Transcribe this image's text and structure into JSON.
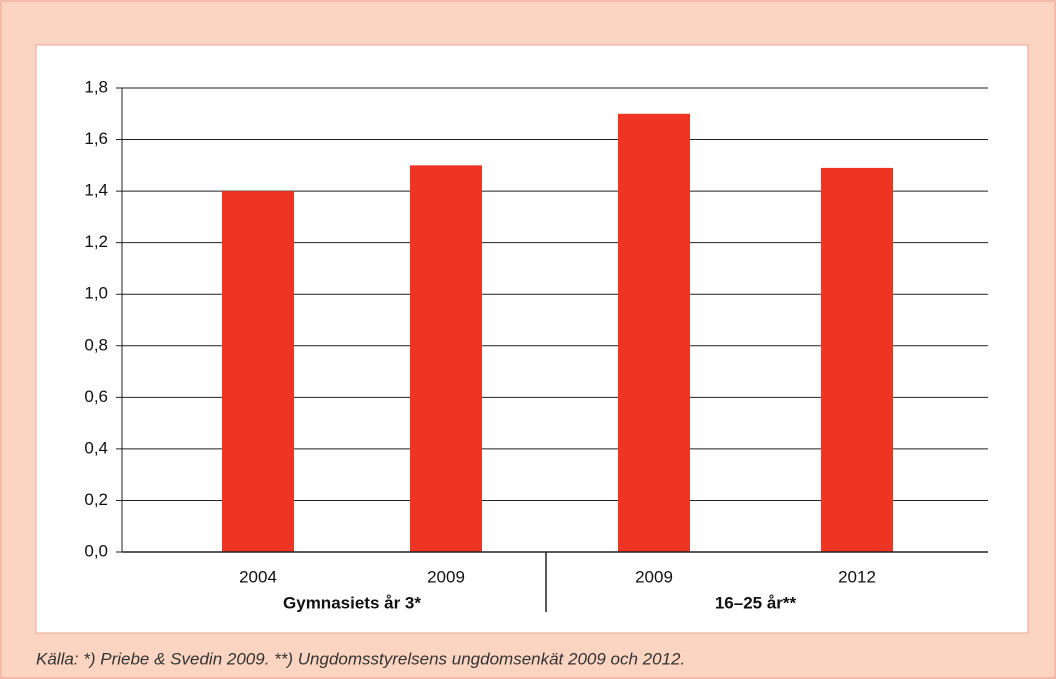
{
  "chart_data": {
    "type": "bar",
    "categories": [
      "2004",
      "2009",
      "2009",
      "2012"
    ],
    "group_names": [
      "Gymnasiets år 3*",
      "16–25 år**"
    ],
    "values": [
      1.4,
      1.5,
      1.7,
      1.49
    ],
    "color": "#ee3524",
    "ylim": [
      0,
      1.8
    ],
    "yticks": [
      {
        "value": 0,
        "label": "0,0"
      },
      {
        "value": 0.2,
        "label": "0,2"
      },
      {
        "value": 0.4,
        "label": "0,4"
      },
      {
        "value": 0.6,
        "label": "0,6"
      },
      {
        "value": 0.8,
        "label": "0,8"
      },
      {
        "value": 1.0,
        "label": "1,0"
      },
      {
        "value": 1.2,
        "label": "1,2"
      },
      {
        "value": 1.4,
        "label": "1,4"
      },
      {
        "value": 1.6,
        "label": "1,6"
      },
      {
        "value": 1.8,
        "label": "1,8"
      }
    ],
    "grid": true,
    "source": "Källa: *) Priebe & Svedin 2009. **) Ungdomsstyrelsens ungdomsenkät 2009 och 2012."
  }
}
